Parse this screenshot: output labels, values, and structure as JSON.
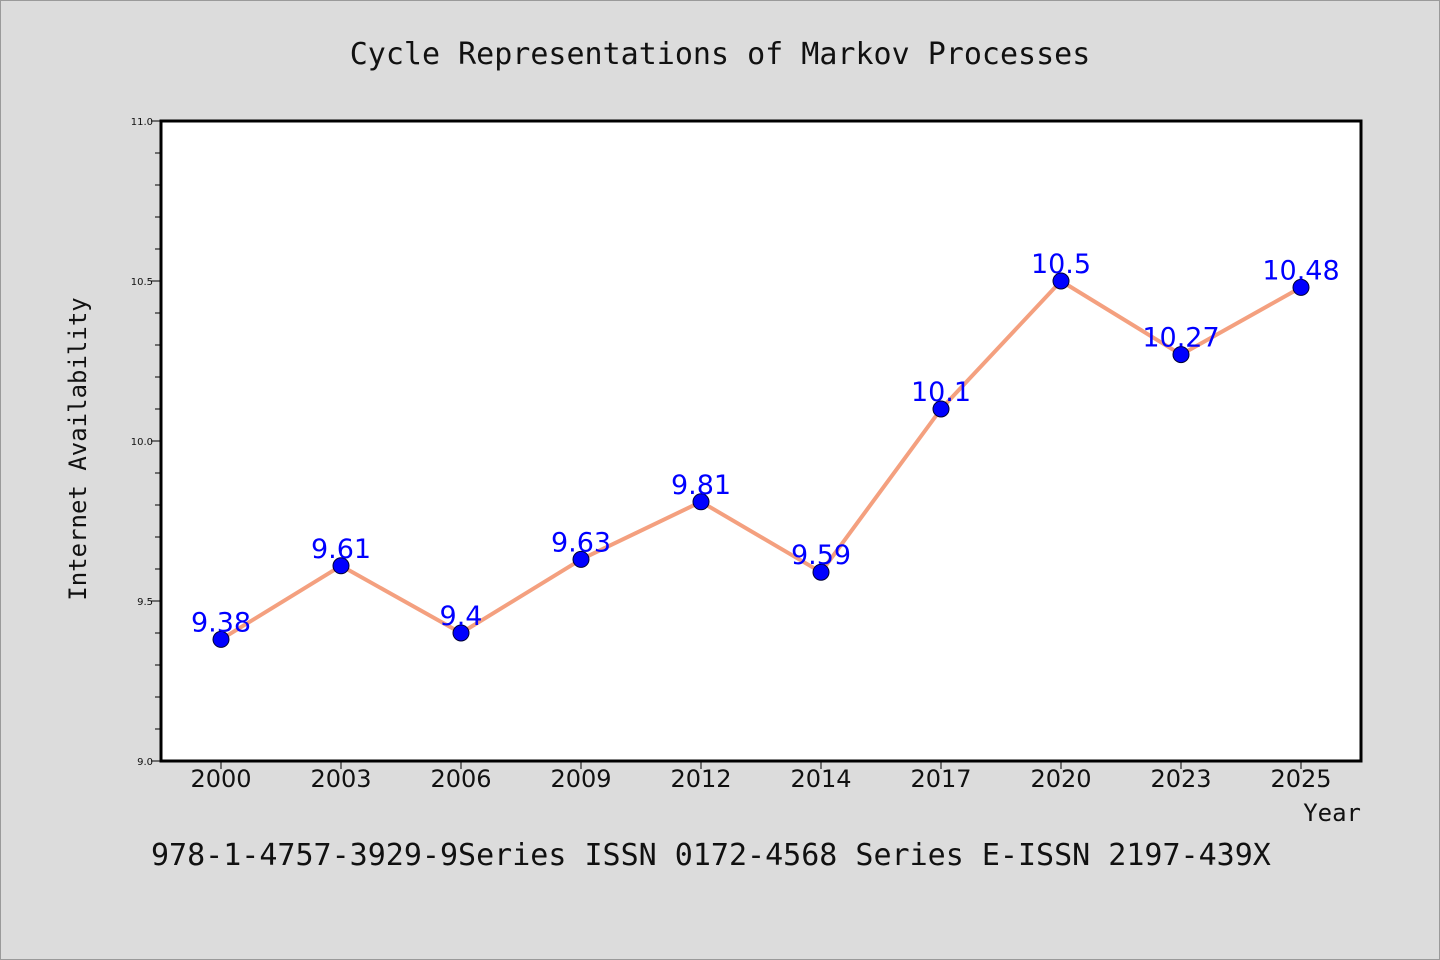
{
  "chart_data": {
    "type": "line",
    "title": "Cycle Representations of Markov Processes",
    "xlabel": "Year",
    "ylabel": "Internet Availability",
    "categories": [
      "2000",
      "2003",
      "2006",
      "2009",
      "2012",
      "2014",
      "2017",
      "2020",
      "2023",
      "2025"
    ],
    "series": [
      {
        "values": [
          9.38,
          9.61,
          9.4,
          9.63,
          9.81,
          9.59,
          10.1,
          10.5,
          10.27,
          10.48
        ],
        "labels": [
          "9.38",
          "9.61",
          "9.4",
          "9.63",
          "9.81",
          "9.59",
          "10.1",
          "10.5",
          "10.27",
          "10.48"
        ],
        "line_color": "#f4a07f",
        "marker_color": "#0000ff",
        "label_color": "#0000ff"
      }
    ],
    "ylim": [
      9.0,
      11.0
    ],
    "yticks": [
      "9.0",
      "9.5",
      "10.0",
      "10.5",
      "11.0"
    ],
    "grid": false,
    "legend": "none"
  },
  "footer": {
    "text": "978-1-4757-3929-9Series ISSN 0172-4568 Series E-ISSN 2197-439X"
  }
}
